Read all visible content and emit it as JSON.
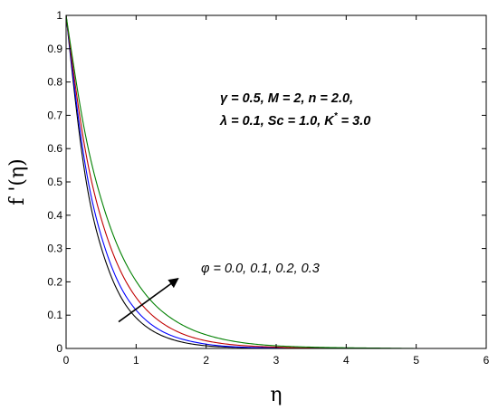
{
  "chart_data": {
    "type": "line",
    "title": "",
    "xlabel": "η",
    "ylabel": "f '(η)",
    "xlim": [
      0,
      6
    ],
    "ylim": [
      0,
      1
    ],
    "xticks": [
      "0",
      "1",
      "2",
      "3",
      "4",
      "5",
      "6"
    ],
    "yticks": [
      "0",
      "0.1",
      "0.2",
      "0.3",
      "0.4",
      "0.5",
      "0.6",
      "0.7",
      "0.8",
      "0.9",
      "1"
    ],
    "grid": false,
    "x": [
      0,
      0.25,
      0.5,
      0.75,
      1,
      1.25,
      1.5,
      1.75,
      2,
      2.5,
      3,
      3.5,
      4,
      4.5,
      5,
      5.5,
      6
    ],
    "series": [
      {
        "color": "#000000",
        "values": [
          1,
          0.551,
          0.304,
          0.167,
          0.092,
          0.051,
          0.028,
          0.015,
          0.008,
          0.003,
          0.001,
          0,
          0,
          0,
          0,
          0,
          0
        ]
      },
      {
        "color": "#0000ff",
        "values": [
          1,
          0.582,
          0.339,
          0.197,
          0.115,
          0.067,
          0.039,
          0.023,
          0.013,
          0.004,
          0.002,
          0.001,
          0,
          0,
          0,
          0,
          0
        ]
      },
      {
        "color": "#c00000",
        "values": [
          1,
          0.625,
          0.391,
          0.245,
          0.153,
          0.096,
          0.06,
          0.037,
          0.023,
          0.009,
          0.004,
          0.001,
          0.001,
          0,
          0,
          0,
          0
        ]
      },
      {
        "color": "#008000",
        "values": [
          1,
          0.67,
          0.449,
          0.301,
          0.202,
          0.135,
          0.091,
          0.061,
          0.041,
          0.018,
          0.008,
          0.004,
          0.002,
          0.001,
          0,
          0,
          0
        ]
      }
    ],
    "parameters": {
      "line1": "γ = 0.5,  M = 2,  n = 2.0,",
      "line2_a": "λ = 0.1,  Sc = 1.0,  K",
      "line2_sup": "*",
      "line2_b": " = 3.0"
    },
    "annotation": {
      "text": "φ = 0.0, 0.1, 0.2, 0.3",
      "arrow_from": [
        0.75,
        0.08
      ],
      "arrow_to": [
        1.6,
        0.21
      ]
    }
  }
}
